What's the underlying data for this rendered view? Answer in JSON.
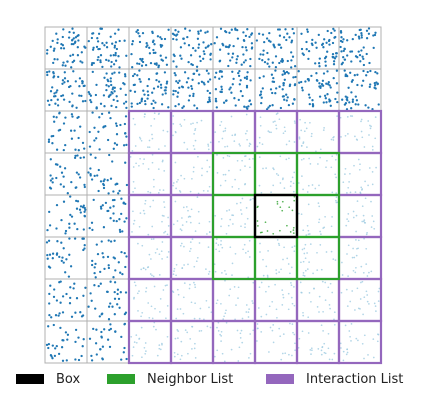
{
  "grid": {
    "cells_per_side": 8,
    "box_cell": [
      5,
      4
    ],
    "neighbor_cells": [
      [
        4,
        3
      ],
      [
        5,
        3
      ],
      [
        6,
        3
      ],
      [
        4,
        4
      ],
      [
        6,
        4
      ],
      [
        4,
        5
      ],
      [
        5,
        5
      ],
      [
        6,
        5
      ]
    ],
    "interaction_region": {
      "col_start": 2,
      "col_end": 7,
      "row_start": 2,
      "row_end": 7
    }
  },
  "points": {
    "color": "#1f77b4",
    "faded_color": "#9ecae1",
    "box_color": "#2ca02c"
  },
  "colors": {
    "box": "#000000",
    "neighbor": "#2ca02c",
    "interaction": "#9467bd",
    "grid_line": "#b0b0b0"
  },
  "legend": [
    {
      "label": "Box",
      "color": "#000000"
    },
    {
      "label": "Neighbor List",
      "color": "#2ca02c"
    },
    {
      "label": "Interaction List",
      "color": "#9467bd"
    }
  ]
}
